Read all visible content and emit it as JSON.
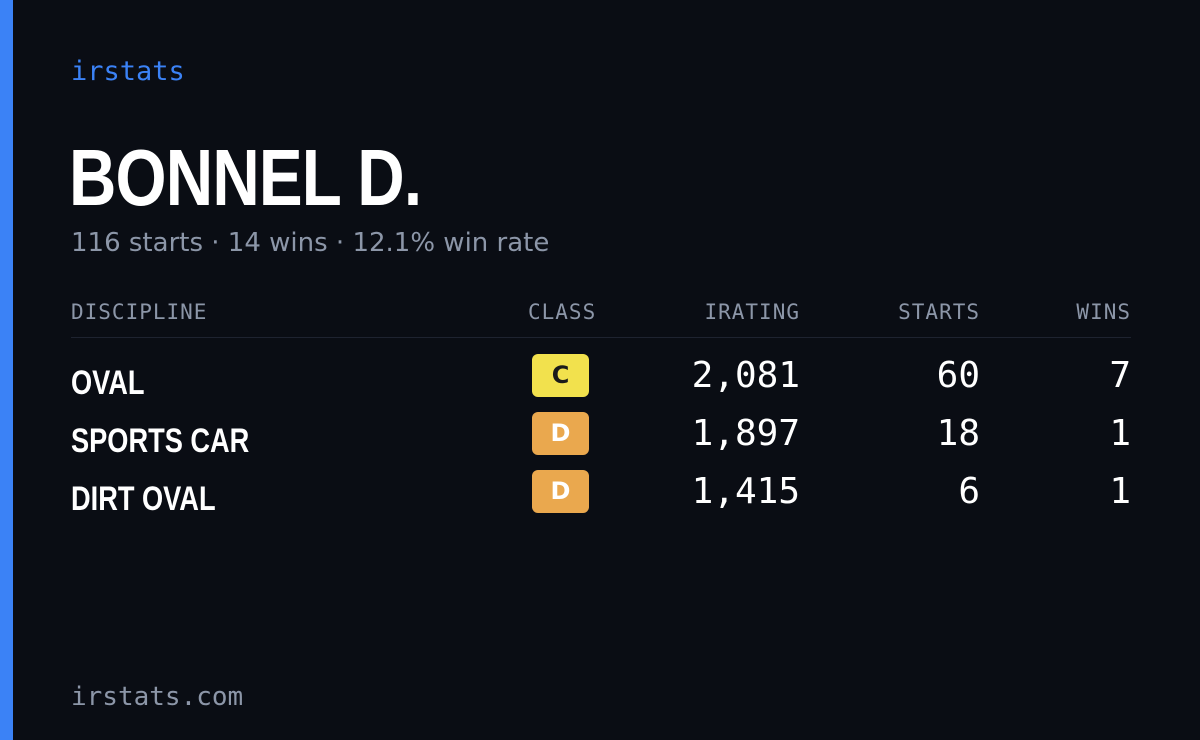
{
  "brand": "irstats",
  "driver": {
    "name": "BONNEL D.",
    "summary": "116 starts · 14 wins · 12.1% win rate"
  },
  "table": {
    "headers": {
      "discipline": "DISCIPLINE",
      "class": "CLASS",
      "irating": "IRATING",
      "starts": "STARTS",
      "wins": "WINS"
    },
    "rows": [
      {
        "discipline": "OVAL",
        "class": "C",
        "irating": "2,081",
        "starts": "60",
        "wins": "7"
      },
      {
        "discipline": "SPORTS CAR",
        "class": "D",
        "irating": "1,897",
        "starts": "18",
        "wins": "1"
      },
      {
        "discipline": "DIRT OVAL",
        "class": "D",
        "irating": "1,415",
        "starts": "6",
        "wins": "1"
      }
    ]
  },
  "footer": "irstats.com",
  "colors": {
    "background": "#0a0d14",
    "accent": "#3b82f6",
    "class_c": "#f2e14d",
    "class_d": "#eaa84e",
    "muted_text": "#8c96a8"
  }
}
